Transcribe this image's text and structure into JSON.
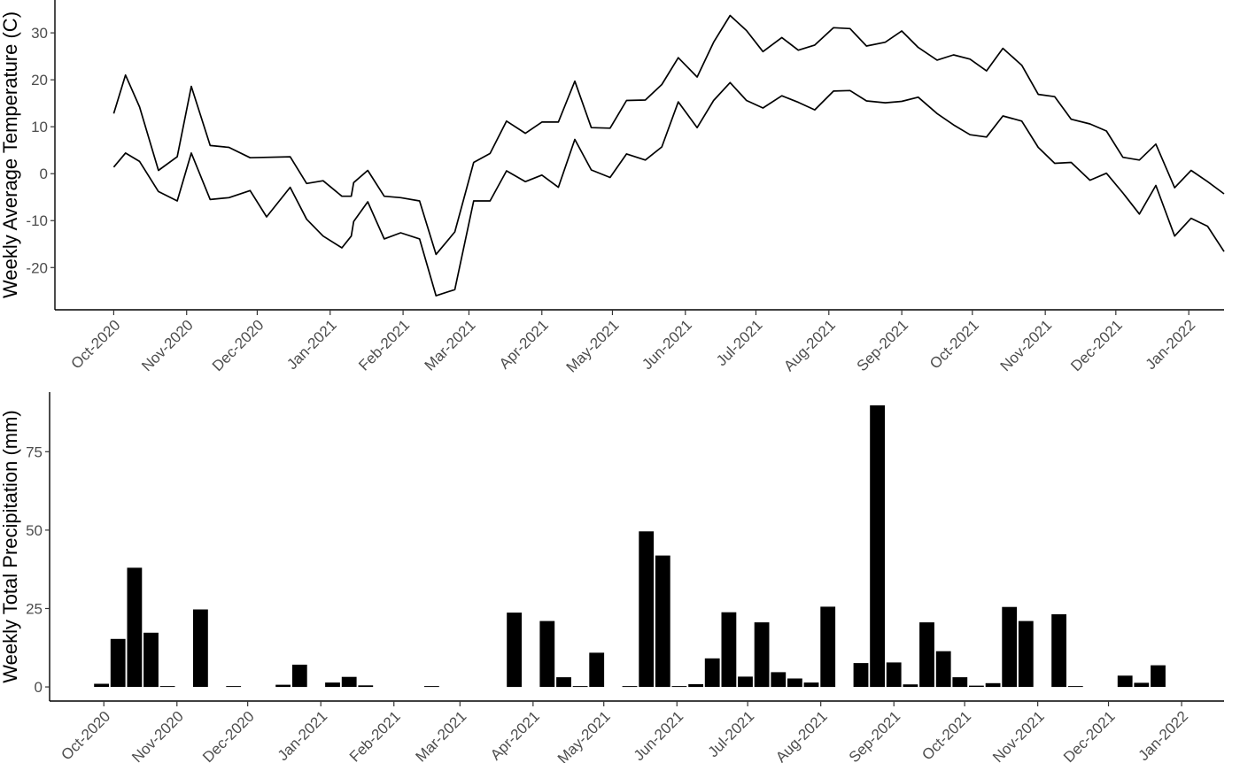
{
  "chart_data": [
    {
      "type": "line",
      "ylabel": "Weekly Average Temperature (C)",
      "xlabel": "",
      "xlim": [
        "2020-09-06",
        "2022-01-16"
      ],
      "ylim": [
        -29,
        37
      ],
      "y_ticks": [
        -20,
        -10,
        0,
        10,
        20,
        30
      ],
      "x_ticks": [
        {
          "date": "2020-10-01",
          "label": "Oct-2020"
        },
        {
          "date": "2020-11-01",
          "label": "Nov-2020"
        },
        {
          "date": "2020-12-01",
          "label": "Dec-2020"
        },
        {
          "date": "2021-01-01",
          "label": "Jan-2021"
        },
        {
          "date": "2021-02-01",
          "label": "Feb-2021"
        },
        {
          "date": "2021-03-01",
          "label": "Mar-2021"
        },
        {
          "date": "2021-04-01",
          "label": "Apr-2021"
        },
        {
          "date": "2021-05-01",
          "label": "May-2021"
        },
        {
          "date": "2021-06-01",
          "label": "Jun-2021"
        },
        {
          "date": "2021-07-01",
          "label": "Jul-2021"
        },
        {
          "date": "2021-08-01",
          "label": "Aug-2021"
        },
        {
          "date": "2021-09-01",
          "label": "Sep-2021"
        },
        {
          "date": "2021-10-01",
          "label": "Oct-2021"
        },
        {
          "date": "2021-11-01",
          "label": "Nov-2021"
        },
        {
          "date": "2021-12-01",
          "label": "Dec-2021"
        },
        {
          "date": "2022-01-01",
          "label": "Jan-2022"
        }
      ],
      "grid": false,
      "series": [
        {
          "color": "#000000",
          "points": [
            [
              "2020-10-01",
              12.8
            ],
            [
              "2020-10-06",
              21.0
            ],
            [
              "2020-10-12",
              14.2
            ],
            [
              "2020-10-20",
              0.7
            ],
            [
              "2020-10-28",
              3.6
            ],
            [
              "2020-11-03",
              18.6
            ],
            [
              "2020-11-11",
              6.0
            ],
            [
              "2020-11-19",
              5.6
            ],
            [
              "2020-11-28",
              3.4
            ],
            [
              "2020-12-15",
              3.6
            ],
            [
              "2020-12-22",
              -2.1
            ],
            [
              "2020-12-29",
              -1.5
            ],
            [
              "2021-01-06",
              -4.8
            ],
            [
              "2021-01-10",
              -4.8
            ],
            [
              "2021-01-11",
              -1.9
            ],
            [
              "2021-01-17",
              0.7
            ],
            [
              "2021-01-24",
              -4.8
            ],
            [
              "2021-01-31",
              -5.1
            ],
            [
              "2021-02-08",
              -5.8
            ],
            [
              "2021-02-15",
              -17.2
            ],
            [
              "2021-02-23",
              -12.4
            ],
            [
              "2021-03-03",
              2.4
            ],
            [
              "2021-03-10",
              4.3
            ],
            [
              "2021-03-17",
              11.2
            ],
            [
              "2021-03-25",
              8.6
            ],
            [
              "2021-04-01",
              11.0
            ],
            [
              "2021-04-08",
              11.0
            ],
            [
              "2021-04-15",
              19.7
            ],
            [
              "2021-04-22",
              9.8
            ],
            [
              "2021-04-30",
              9.7
            ],
            [
              "2021-05-07",
              15.6
            ],
            [
              "2021-05-15",
              15.7
            ],
            [
              "2021-05-22",
              19.0
            ],
            [
              "2021-05-29",
              24.7
            ],
            [
              "2021-06-06",
              20.6
            ],
            [
              "2021-06-13",
              28.0
            ],
            [
              "2021-06-20",
              33.7
            ],
            [
              "2021-06-27",
              30.5
            ],
            [
              "2021-07-04",
              26.0
            ],
            [
              "2021-07-12",
              29.0
            ],
            [
              "2021-07-19",
              26.3
            ],
            [
              "2021-07-26",
              27.4
            ],
            [
              "2021-08-03",
              31.1
            ],
            [
              "2021-08-10",
              30.9
            ],
            [
              "2021-08-17",
              27.2
            ],
            [
              "2021-08-25",
              28.0
            ],
            [
              "2021-09-01",
              30.4
            ],
            [
              "2021-09-08",
              26.9
            ],
            [
              "2021-09-16",
              24.2
            ],
            [
              "2021-09-23",
              25.3
            ],
            [
              "2021-09-30",
              24.4
            ],
            [
              "2021-10-07",
              21.9
            ],
            [
              "2021-10-14",
              26.7
            ],
            [
              "2021-10-22",
              23.1
            ],
            [
              "2021-10-29",
              16.9
            ],
            [
              "2021-11-05",
              16.4
            ],
            [
              "2021-11-12",
              11.6
            ],
            [
              "2021-11-20",
              10.6
            ],
            [
              "2021-11-27",
              9.1
            ],
            [
              "2021-12-04",
              3.5
            ],
            [
              "2021-12-11",
              2.9
            ],
            [
              "2021-12-18",
              6.3
            ],
            [
              "2021-12-26",
              -3.0
            ],
            [
              "2022-01-02",
              0.7
            ],
            [
              "2022-01-09",
              -1.7
            ],
            [
              "2022-01-16",
              -4.3
            ]
          ]
        },
        {
          "color": "#000000",
          "points": [
            [
              "2020-10-01",
              1.4
            ],
            [
              "2020-10-06",
              4.4
            ],
            [
              "2020-10-12",
              2.6
            ],
            [
              "2020-10-20",
              -3.8
            ],
            [
              "2020-10-28",
              -5.8
            ],
            [
              "2020-11-03",
              4.4
            ],
            [
              "2020-11-11",
              -5.5
            ],
            [
              "2020-11-19",
              -5.1
            ],
            [
              "2020-11-28",
              -3.6
            ],
            [
              "2020-12-05",
              -9.2
            ],
            [
              "2020-12-15",
              -2.9
            ],
            [
              "2020-12-22",
              -9.7
            ],
            [
              "2020-12-29",
              -13.3
            ],
            [
              "2021-01-06",
              -15.8
            ],
            [
              "2021-01-10",
              -13.3
            ],
            [
              "2021-01-11",
              -10.2
            ],
            [
              "2021-01-17",
              -6.0
            ],
            [
              "2021-01-24",
              -13.9
            ],
            [
              "2021-01-31",
              -12.6
            ],
            [
              "2021-02-08",
              -13.9
            ],
            [
              "2021-02-15",
              -26.0
            ],
            [
              "2021-02-23",
              -24.7
            ],
            [
              "2021-03-03",
              -5.8
            ],
            [
              "2021-03-10",
              -5.8
            ],
            [
              "2021-03-17",
              0.6
            ],
            [
              "2021-03-25",
              -1.7
            ],
            [
              "2021-04-01",
              -0.3
            ],
            [
              "2021-04-08",
              -2.9
            ],
            [
              "2021-04-15",
              7.3
            ],
            [
              "2021-04-22",
              0.8
            ],
            [
              "2021-04-30",
              -0.8
            ],
            [
              "2021-05-07",
              4.2
            ],
            [
              "2021-05-15",
              2.9
            ],
            [
              "2021-05-22",
              5.7
            ],
            [
              "2021-05-29",
              15.3
            ],
            [
              "2021-06-06",
              9.8
            ],
            [
              "2021-06-13",
              15.6
            ],
            [
              "2021-06-20",
              19.4
            ],
            [
              "2021-06-27",
              15.6
            ],
            [
              "2021-07-04",
              14.0
            ],
            [
              "2021-07-12",
              16.6
            ],
            [
              "2021-07-19",
              15.2
            ],
            [
              "2021-07-26",
              13.6
            ],
            [
              "2021-08-03",
              17.6
            ],
            [
              "2021-08-10",
              17.7
            ],
            [
              "2021-08-17",
              15.5
            ],
            [
              "2021-08-25",
              15.1
            ],
            [
              "2021-09-01",
              15.4
            ],
            [
              "2021-09-08",
              16.3
            ],
            [
              "2021-09-16",
              12.8
            ],
            [
              "2021-09-23",
              10.4
            ],
            [
              "2021-09-30",
              8.3
            ],
            [
              "2021-10-07",
              7.8
            ],
            [
              "2021-10-14",
              12.3
            ],
            [
              "2021-10-22",
              11.2
            ],
            [
              "2021-10-29",
              5.6
            ],
            [
              "2021-11-05",
              2.2
            ],
            [
              "2021-11-12",
              2.4
            ],
            [
              "2021-11-20",
              -1.4
            ],
            [
              "2021-11-27",
              0.1
            ],
            [
              "2021-12-04",
              -4.1
            ],
            [
              "2021-12-11",
              -8.6
            ],
            [
              "2021-12-18",
              -2.5
            ],
            [
              "2021-12-26",
              -13.3
            ],
            [
              "2022-01-02",
              -9.5
            ],
            [
              "2022-01-09",
              -11.2
            ],
            [
              "2022-01-16",
              -16.6
            ]
          ]
        }
      ]
    },
    {
      "type": "bar",
      "ylabel": "Weekly Total Precipitation (mm)",
      "xlabel": "",
      "xlim": [
        "2020-09-08",
        "2022-01-19"
      ],
      "ylim": [
        -4.5,
        94
      ],
      "y_ticks": [
        0,
        25,
        50,
        75
      ],
      "x_ticks": [
        {
          "date": "2020-10-01",
          "label": "Oct-2020"
        },
        {
          "date": "2020-11-01",
          "label": "Nov-2020"
        },
        {
          "date": "2020-12-01",
          "label": "Dec-2020"
        },
        {
          "date": "2021-01-01",
          "label": "Jan-2021"
        },
        {
          "date": "2021-02-01",
          "label": "Feb-2021"
        },
        {
          "date": "2021-03-01",
          "label": "Mar-2021"
        },
        {
          "date": "2021-04-01",
          "label": "Apr-2021"
        },
        {
          "date": "2021-05-01",
          "label": "May-2021"
        },
        {
          "date": "2021-06-01",
          "label": "Jun-2021"
        },
        {
          "date": "2021-07-01",
          "label": "Jul-2021"
        },
        {
          "date": "2021-08-01",
          "label": "Aug-2021"
        },
        {
          "date": "2021-09-01",
          "label": "Sep-2021"
        },
        {
          "date": "2021-10-01",
          "label": "Oct-2021"
        },
        {
          "date": "2021-11-01",
          "label": "Nov-2021"
        },
        {
          "date": "2021-12-01",
          "label": "Dec-2021"
        },
        {
          "date": "2022-01-01",
          "label": "Jan-2022"
        }
      ],
      "grid": false,
      "bar_color": "#000000",
      "bars": [
        [
          "2020-09-30",
          1.0
        ],
        [
          "2020-10-07",
          15.3
        ],
        [
          "2020-10-14",
          38.0
        ],
        [
          "2020-10-21",
          17.3
        ],
        [
          "2020-10-28",
          0.2
        ],
        [
          "2020-11-11",
          24.7
        ],
        [
          "2020-11-25",
          0.2
        ],
        [
          "2020-12-16",
          0.7
        ],
        [
          "2020-12-23",
          7.1
        ],
        [
          "2021-01-06",
          1.4
        ],
        [
          "2021-01-13",
          3.2
        ],
        [
          "2021-01-20",
          0.5
        ],
        [
          "2021-02-17",
          0.1
        ],
        [
          "2021-03-24",
          23.7
        ],
        [
          "2021-04-07",
          21.0
        ],
        [
          "2021-04-14",
          3.1
        ],
        [
          "2021-04-21",
          0.2
        ],
        [
          "2021-04-28",
          10.9
        ],
        [
          "2021-05-12",
          0.1
        ],
        [
          "2021-05-19",
          49.6
        ],
        [
          "2021-05-26",
          41.9
        ],
        [
          "2021-06-02",
          0.2
        ],
        [
          "2021-06-09",
          0.9
        ],
        [
          "2021-06-16",
          9.1
        ],
        [
          "2021-06-23",
          23.8
        ],
        [
          "2021-06-30",
          3.3
        ],
        [
          "2021-07-07",
          20.6
        ],
        [
          "2021-07-14",
          4.7
        ],
        [
          "2021-07-21",
          2.7
        ],
        [
          "2021-07-28",
          1.4
        ],
        [
          "2021-08-04",
          25.6
        ],
        [
          "2021-08-18",
          7.6
        ],
        [
          "2021-08-25",
          89.8
        ],
        [
          "2021-09-01",
          7.8
        ],
        [
          "2021-09-08",
          0.8
        ],
        [
          "2021-09-15",
          20.6
        ],
        [
          "2021-09-22",
          11.4
        ],
        [
          "2021-09-29",
          3.1
        ],
        [
          "2021-10-06",
          0.4
        ],
        [
          "2021-10-13",
          1.2
        ],
        [
          "2021-10-20",
          25.5
        ],
        [
          "2021-10-27",
          21.0
        ],
        [
          "2021-11-10",
          23.2
        ],
        [
          "2021-11-17",
          0.2
        ],
        [
          "2021-12-08",
          3.6
        ],
        [
          "2021-12-15",
          1.3
        ],
        [
          "2021-12-22",
          6.9
        ]
      ]
    }
  ]
}
